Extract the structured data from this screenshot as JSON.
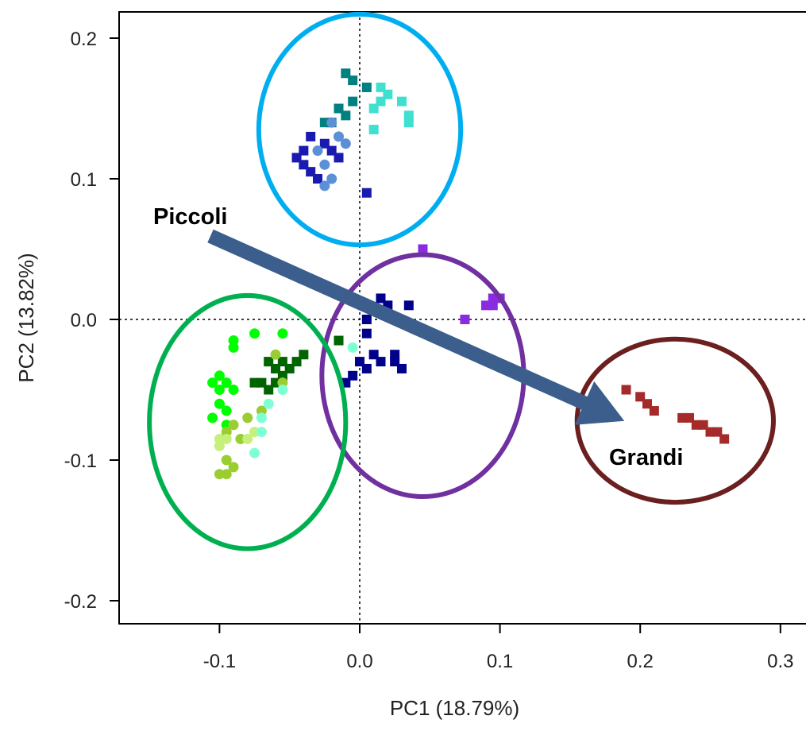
{
  "chart_data": {
    "type": "scatter",
    "title": "",
    "xlabel": "PC1 (18.79%)",
    "ylabel": "PC2 (13.82%)",
    "xlim": [
      -0.17,
      0.32
    ],
    "ylim": [
      -0.22,
      0.22
    ],
    "xticks": [
      -0.1,
      0.0,
      0.1,
      0.2,
      0.3
    ],
    "xtick_labels": [
      "-0.1",
      "0.0",
      "0.1",
      "0.2",
      "0.3"
    ],
    "yticks": [
      -0.2,
      -0.1,
      0.0,
      0.1,
      0.2
    ],
    "ytick_labels": [
      "-0.2",
      "-0.1",
      "0.0",
      "0.1",
      "0.2"
    ],
    "reference_lines": {
      "x": 0,
      "y": 0,
      "style": "dotted"
    },
    "legend": "none",
    "series": [
      {
        "color": "#008080",
        "marker": "square",
        "points": [
          [
            -0.01,
            0.175
          ],
          [
            -0.005,
            0.17
          ],
          [
            0.005,
            0.165
          ],
          [
            -0.015,
            0.15
          ],
          [
            -0.005,
            0.155
          ],
          [
            -0.01,
            0.145
          ],
          [
            -0.02,
            0.14
          ],
          [
            -0.025,
            0.14
          ]
        ]
      },
      {
        "color": "#40E0D0",
        "marker": "square",
        "points": [
          [
            0.015,
            0.165
          ],
          [
            0.02,
            0.16
          ],
          [
            0.015,
            0.155
          ],
          [
            0.01,
            0.15
          ],
          [
            0.03,
            0.155
          ],
          [
            0.035,
            0.145
          ],
          [
            0.035,
            0.14
          ],
          [
            0.01,
            0.135
          ]
        ]
      },
      {
        "color": "#1A1AB0",
        "marker": "square",
        "points": [
          [
            -0.035,
            0.13
          ],
          [
            -0.04,
            0.12
          ],
          [
            -0.045,
            0.115
          ],
          [
            -0.04,
            0.11
          ],
          [
            -0.035,
            0.105
          ],
          [
            -0.03,
            0.1
          ],
          [
            -0.025,
            0.125
          ],
          [
            -0.02,
            0.12
          ],
          [
            -0.015,
            0.115
          ],
          [
            0.005,
            0.09
          ]
        ]
      },
      {
        "color": "#5B8FD6",
        "marker": "circle",
        "points": [
          [
            -0.02,
            0.14
          ],
          [
            -0.015,
            0.13
          ],
          [
            -0.01,
            0.125
          ],
          [
            -0.03,
            0.12
          ],
          [
            -0.025,
            0.11
          ],
          [
            -0.02,
            0.1
          ],
          [
            -0.025,
            0.095
          ]
        ]
      },
      {
        "color": "#00008B",
        "marker": "square",
        "points": [
          [
            0.015,
            0.015
          ],
          [
            0.02,
            0.01
          ],
          [
            0.035,
            0.01
          ],
          [
            0.005,
            0.0
          ],
          [
            0.005,
            -0.01
          ],
          [
            0.01,
            -0.025
          ],
          [
            0.0,
            -0.03
          ],
          [
            0.005,
            -0.035
          ],
          [
            0.015,
            -0.03
          ],
          [
            0.025,
            -0.025
          ],
          [
            0.025,
            -0.03
          ],
          [
            0.03,
            -0.035
          ],
          [
            -0.005,
            -0.04
          ],
          [
            -0.01,
            -0.045
          ]
        ]
      },
      {
        "color": "#8A2BE2",
        "marker": "square",
        "points": [
          [
            0.045,
            0.05
          ],
          [
            0.075,
            -0.0
          ],
          [
            0.09,
            0.01
          ],
          [
            0.095,
            0.015
          ],
          [
            0.1,
            0.015
          ],
          [
            0.095,
            0.01
          ]
        ]
      },
      {
        "color": "#00FF00",
        "marker": "circle",
        "points": [
          [
            -0.1,
            -0.04
          ],
          [
            -0.095,
            -0.045
          ],
          [
            -0.105,
            -0.045
          ],
          [
            -0.1,
            -0.05
          ],
          [
            -0.09,
            -0.05
          ],
          [
            -0.1,
            -0.06
          ],
          [
            -0.095,
            -0.065
          ],
          [
            -0.105,
            -0.07
          ],
          [
            -0.095,
            -0.075
          ],
          [
            -0.09,
            -0.02
          ],
          [
            -0.075,
            -0.01
          ],
          [
            -0.055,
            -0.01
          ],
          [
            -0.09,
            -0.015
          ]
        ]
      },
      {
        "color": "#006400",
        "marker": "square",
        "points": [
          [
            -0.065,
            -0.03
          ],
          [
            -0.06,
            -0.035
          ],
          [
            -0.055,
            -0.04
          ],
          [
            -0.06,
            -0.045
          ],
          [
            -0.05,
            -0.035
          ],
          [
            -0.045,
            -0.03
          ],
          [
            -0.055,
            -0.03
          ],
          [
            -0.07,
            -0.045
          ],
          [
            -0.065,
            -0.05
          ],
          [
            -0.075,
            -0.045
          ],
          [
            -0.04,
            -0.025
          ],
          [
            -0.015,
            -0.015
          ]
        ]
      },
      {
        "color": "#9ACD32",
        "marker": "circle",
        "points": [
          [
            -0.06,
            -0.025
          ],
          [
            -0.055,
            -0.045
          ],
          [
            -0.07,
            -0.065
          ],
          [
            -0.08,
            -0.07
          ],
          [
            -0.09,
            -0.075
          ],
          [
            -0.095,
            -0.08
          ],
          [
            -0.085,
            -0.085
          ],
          [
            -0.095,
            -0.1
          ],
          [
            -0.09,
            -0.105
          ],
          [
            -0.095,
            -0.11
          ],
          [
            -0.1,
            -0.11
          ]
        ]
      },
      {
        "color": "#C5F07A",
        "marker": "circle",
        "points": [
          [
            -0.1,
            -0.085
          ],
          [
            -0.095,
            -0.085
          ],
          [
            -0.1,
            -0.09
          ],
          [
            -0.075,
            -0.08
          ],
          [
            -0.08,
            -0.085
          ]
        ]
      },
      {
        "color": "#7FFFD4",
        "marker": "circle",
        "points": [
          [
            -0.055,
            -0.05
          ],
          [
            -0.065,
            -0.06
          ],
          [
            -0.07,
            -0.07
          ],
          [
            -0.07,
            -0.08
          ],
          [
            -0.075,
            -0.095
          ],
          [
            -0.005,
            -0.02
          ]
        ]
      },
      {
        "color": "#A52A2A",
        "marker": "square",
        "points": [
          [
            0.19,
            -0.05
          ],
          [
            0.2,
            -0.055
          ],
          [
            0.205,
            -0.06
          ],
          [
            0.21,
            -0.065
          ],
          [
            0.23,
            -0.07
          ],
          [
            0.235,
            -0.07
          ],
          [
            0.24,
            -0.075
          ],
          [
            0.245,
            -0.075
          ],
          [
            0.25,
            -0.08
          ],
          [
            0.255,
            -0.08
          ],
          [
            0.26,
            -0.085
          ]
        ]
      }
    ],
    "group_ellipses": [
      {
        "color": "#00AEEF",
        "center": [
          0.0,
          0.135
        ],
        "rx_data": 0.072,
        "ry_data": 0.082
      },
      {
        "color": "#7030A0",
        "center": [
          0.045,
          -0.04
        ],
        "rx_data": 0.072,
        "ry_data": 0.086
      },
      {
        "color": "#00B050",
        "center": [
          -0.08,
          -0.073
        ],
        "rx_data": 0.07,
        "ry_data": 0.09
      },
      {
        "color": "#6B1F1F",
        "center": [
          0.225,
          -0.072
        ],
        "rx_data": 0.07,
        "ry_data": 0.058
      }
    ],
    "annotations": [
      {
        "text": "Piccoli",
        "x": -0.075,
        "y": 0.075
      },
      {
        "text": "Grandi",
        "x": 0.225,
        "y": -0.1
      }
    ],
    "arrow": {
      "color": "#3B5E8C",
      "from": [
        -0.12,
        0.06
      ],
      "to": [
        0.2,
        -0.075
      ]
    }
  }
}
